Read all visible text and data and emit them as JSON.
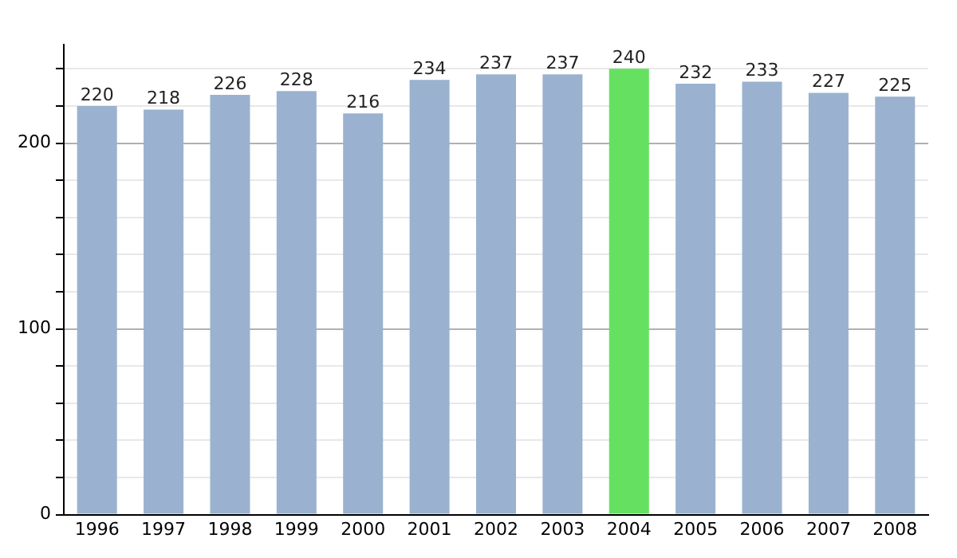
{
  "chart_data": {
    "type": "bar",
    "categories": [
      "1996",
      "1997",
      "1998",
      "1999",
      "2000",
      "2001",
      "2002",
      "2003",
      "2004",
      "2005",
      "2006",
      "2007",
      "2008"
    ],
    "values": [
      220,
      218,
      226,
      228,
      216,
      234,
      237,
      237,
      240,
      232,
      233,
      227,
      225
    ],
    "colors": [
      "#9ab2cf",
      "#9ab2cf",
      "#9ab2cf",
      "#9ab2cf",
      "#9ab2cf",
      "#9ab2cf",
      "#9ab2cf",
      "#9ab2cf",
      "#66e060",
      "#9ab2cf",
      "#9ab2cf",
      "#9ab2cf",
      "#9ab2cf"
    ],
    "ylim": [
      0,
      253
    ],
    "yticks": [
      0,
      {
        "value": 20,
        "label": null
      },
      {
        "value": 40,
        "label": null
      },
      {
        "value": 60,
        "label": null
      },
      {
        "value": 80,
        "label": null
      },
      100,
      {
        "value": 120,
        "label": null
      },
      {
        "value": 140,
        "label": null
      },
      {
        "value": 160,
        "label": null
      },
      {
        "value": 180,
        "label": null
      },
      200,
      {
        "value": 220,
        "label": null
      },
      {
        "value": 240,
        "label": null
      }
    ],
    "grid": "y",
    "data_labels": true,
    "legend": false
  }
}
